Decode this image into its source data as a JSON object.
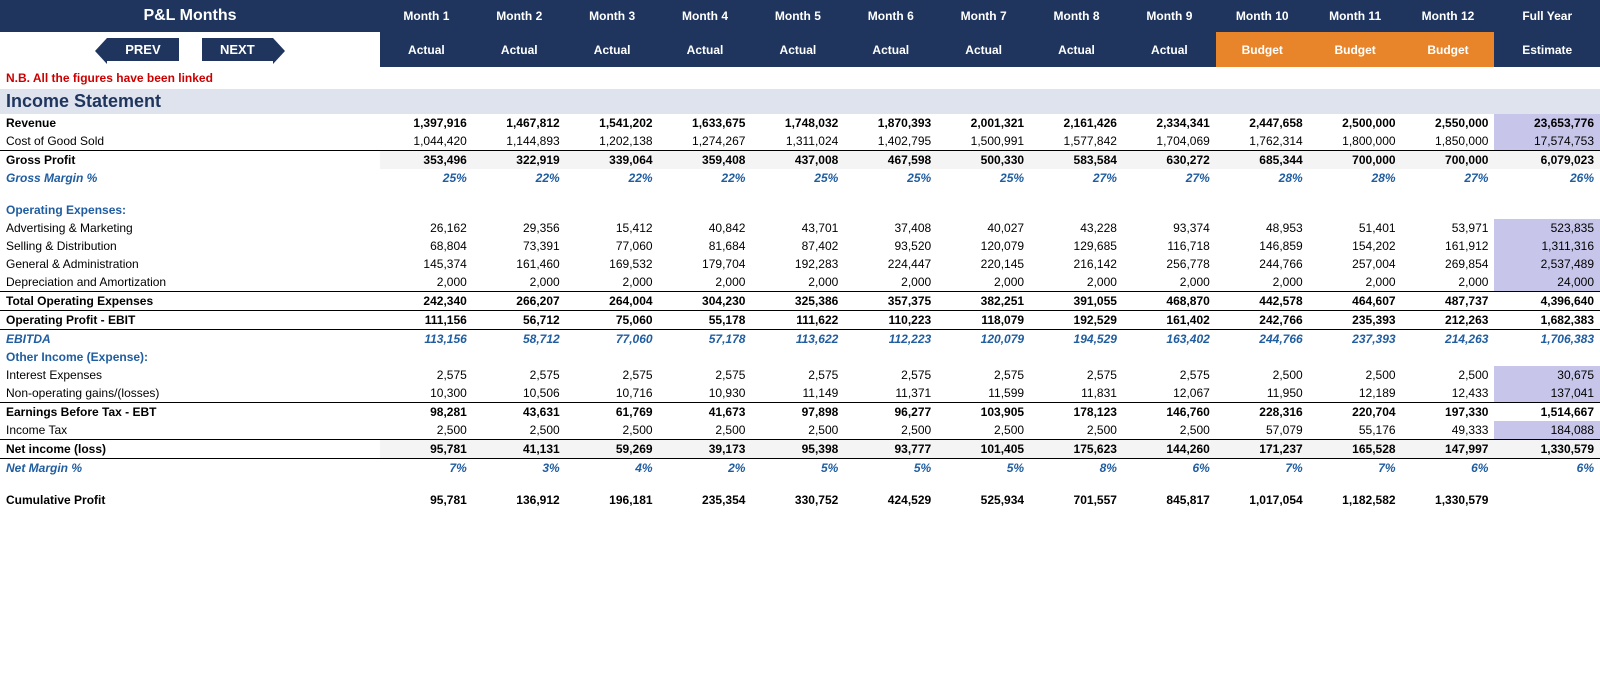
{
  "header": {
    "title": "P&L Months",
    "months": [
      "Month 1",
      "Month 2",
      "Month 3",
      "Month 4",
      "Month 5",
      "Month 6",
      "Month 7",
      "Month 8",
      "Month 9",
      "Month 10",
      "Month 11",
      "Month 12"
    ],
    "full_year": "Full Year",
    "types": [
      "Actual",
      "Actual",
      "Actual",
      "Actual",
      "Actual",
      "Actual",
      "Actual",
      "Actual",
      "Actual",
      "Budget",
      "Budget",
      "Budget"
    ],
    "fy_type": "Estimate",
    "nav_prev": "PREV",
    "nav_next": "NEXT"
  },
  "note": "N.B. All the figures have been linked",
  "section_title": "Income Statement",
  "rows": [
    {
      "key": "revenue",
      "label": "Revenue",
      "style": "bold-lbl",
      "vals": [
        "1,397,916",
        "1,467,812",
        "1,541,202",
        "1,633,675",
        "1,748,032",
        "1,870,393",
        "2,001,321",
        "2,161,426",
        "2,334,341",
        "2,447,658",
        "2,500,000",
        "2,550,000"
      ],
      "fy": "23,653,776",
      "fy_shade": true
    },
    {
      "key": "cogs",
      "label": "Cost of Good Sold",
      "style": "",
      "vals": [
        "1,044,420",
        "1,144,893",
        "1,202,138",
        "1,274,267",
        "1,311,024",
        "1,402,795",
        "1,500,991",
        "1,577,842",
        "1,704,069",
        "1,762,314",
        "1,800,000",
        "1,850,000"
      ],
      "fy": "17,574,753",
      "fy_shade": true
    },
    {
      "key": "gp",
      "label": "Gross Profit",
      "style": "bold bt shade",
      "vals": [
        "353,496",
        "322,919",
        "339,064",
        "359,408",
        "437,008",
        "467,598",
        "500,330",
        "583,584",
        "630,272",
        "685,344",
        "700,000",
        "700,000"
      ],
      "fy": "6,079,023"
    },
    {
      "key": "gm",
      "label": "Gross Margin %",
      "style": "blue-it",
      "vals": [
        "25%",
        "22%",
        "22%",
        "22%",
        "25%",
        "25%",
        "25%",
        "27%",
        "27%",
        "28%",
        "28%",
        "27%"
      ],
      "fy": "26%"
    },
    {
      "key": "sp1",
      "label": "",
      "style": "spacer"
    },
    {
      "key": "opex_h",
      "label": "Operating Expenses:",
      "style": "blue-head"
    },
    {
      "key": "adv",
      "label": "Advertising & Marketing",
      "style": "",
      "vals": [
        "26,162",
        "29,356",
        "15,412",
        "40,842",
        "43,701",
        "37,408",
        "40,027",
        "43,228",
        "93,374",
        "48,953",
        "51,401",
        "53,971"
      ],
      "fy": "523,835",
      "fy_shade": true
    },
    {
      "key": "sell",
      "label": "Selling & Distribution",
      "style": "",
      "vals": [
        "68,804",
        "73,391",
        "77,060",
        "81,684",
        "87,402",
        "93,520",
        "120,079",
        "129,685",
        "116,718",
        "146,859",
        "154,202",
        "161,912"
      ],
      "fy": "1,311,316",
      "fy_shade": true
    },
    {
      "key": "ga",
      "label": "General & Administration",
      "style": "",
      "vals": [
        "145,374",
        "161,460",
        "169,532",
        "179,704",
        "192,283",
        "224,447",
        "220,145",
        "216,142",
        "256,778",
        "244,766",
        "257,004",
        "269,854"
      ],
      "fy": "2,537,489",
      "fy_shade": true
    },
    {
      "key": "da",
      "label": "Depreciation and Amortization",
      "style": "",
      "vals": [
        "2,000",
        "2,000",
        "2,000",
        "2,000",
        "2,000",
        "2,000",
        "2,000",
        "2,000",
        "2,000",
        "2,000",
        "2,000",
        "2,000"
      ],
      "fy": "24,000",
      "fy_shade": true
    },
    {
      "key": "tox",
      "label": "Total Operating Expenses",
      "style": "bold bt",
      "vals": [
        "242,340",
        "266,207",
        "264,004",
        "304,230",
        "325,386",
        "357,375",
        "382,251",
        "391,055",
        "468,870",
        "442,578",
        "464,607",
        "487,737"
      ],
      "fy": "4,396,640"
    },
    {
      "key": "ebit",
      "label": "Operating Profit - EBIT",
      "style": "bold bt bb",
      "vals": [
        "111,156",
        "56,712",
        "75,060",
        "55,178",
        "111,622",
        "110,223",
        "118,079",
        "192,529",
        "161,402",
        "242,766",
        "235,393",
        "212,263"
      ],
      "fy": "1,682,383"
    },
    {
      "key": "ebitda",
      "label": "EBITDA",
      "style": "blue-it",
      "vals": [
        "113,156",
        "58,712",
        "77,060",
        "57,178",
        "113,622",
        "112,223",
        "120,079",
        "194,529",
        "163,402",
        "244,766",
        "237,393",
        "214,263"
      ],
      "fy": "1,706,383"
    },
    {
      "key": "oth_h",
      "label": "Other Income (Expense):",
      "style": "blue-head"
    },
    {
      "key": "int",
      "label": "Interest Expenses",
      "style": "",
      "vals": [
        "2,575",
        "2,575",
        "2,575",
        "2,575",
        "2,575",
        "2,575",
        "2,575",
        "2,575",
        "2,575",
        "2,500",
        "2,500",
        "2,500"
      ],
      "fy": "30,675",
      "fy_shade": true
    },
    {
      "key": "nop",
      "label": "Non-operating gains/(losses)",
      "style": "",
      "vals": [
        "10,300",
        "10,506",
        "10,716",
        "10,930",
        "11,149",
        "11,371",
        "11,599",
        "11,831",
        "12,067",
        "11,950",
        "12,189",
        "12,433"
      ],
      "fy": "137,041",
      "fy_shade": true
    },
    {
      "key": "ebt",
      "label": "Earnings Before Tax - EBT",
      "style": "bold bt",
      "vals": [
        "98,281",
        "43,631",
        "61,769",
        "41,673",
        "97,898",
        "96,277",
        "103,905",
        "178,123",
        "146,760",
        "228,316",
        "220,704",
        "197,330"
      ],
      "fy": "1,514,667"
    },
    {
      "key": "tax",
      "label": "Income Tax",
      "style": "",
      "vals": [
        "2,500",
        "2,500",
        "2,500",
        "2,500",
        "2,500",
        "2,500",
        "2,500",
        "2,500",
        "2,500",
        "57,079",
        "55,176",
        "49,333"
      ],
      "fy": "184,088",
      "fy_shade": true
    },
    {
      "key": "ni",
      "label": "Net income (loss)",
      "style": "bold bt bb shade",
      "vals": [
        "95,781",
        "41,131",
        "59,269",
        "39,173",
        "95,398",
        "93,777",
        "101,405",
        "175,623",
        "144,260",
        "171,237",
        "165,528",
        "147,997"
      ],
      "fy": "1,330,579"
    },
    {
      "key": "nm",
      "label": "Net Margin %",
      "style": "blue-it",
      "vals": [
        "7%",
        "3%",
        "4%",
        "2%",
        "5%",
        "5%",
        "5%",
        "8%",
        "6%",
        "7%",
        "7%",
        "6%"
      ],
      "fy": "6%"
    },
    {
      "key": "sp2",
      "label": "",
      "style": "spacer"
    },
    {
      "key": "cum",
      "label": "Cumulative Profit",
      "style": "bold",
      "vals": [
        "95,781",
        "136,912",
        "196,181",
        "235,354",
        "330,752",
        "424,529",
        "525,934",
        "701,557",
        "845,817",
        "1,017,054",
        "1,182,582",
        "1,330,579"
      ],
      "fy": ""
    }
  ],
  "colors": {
    "header_bg": "#1f355e",
    "budget_bg": "#e8852a",
    "section_bg": "#dfe3ee",
    "fy_shade": "#c7c6ea",
    "row_shade": "#f4f4f4",
    "blue_text": "#1f5da0",
    "note": "#cc0000"
  }
}
